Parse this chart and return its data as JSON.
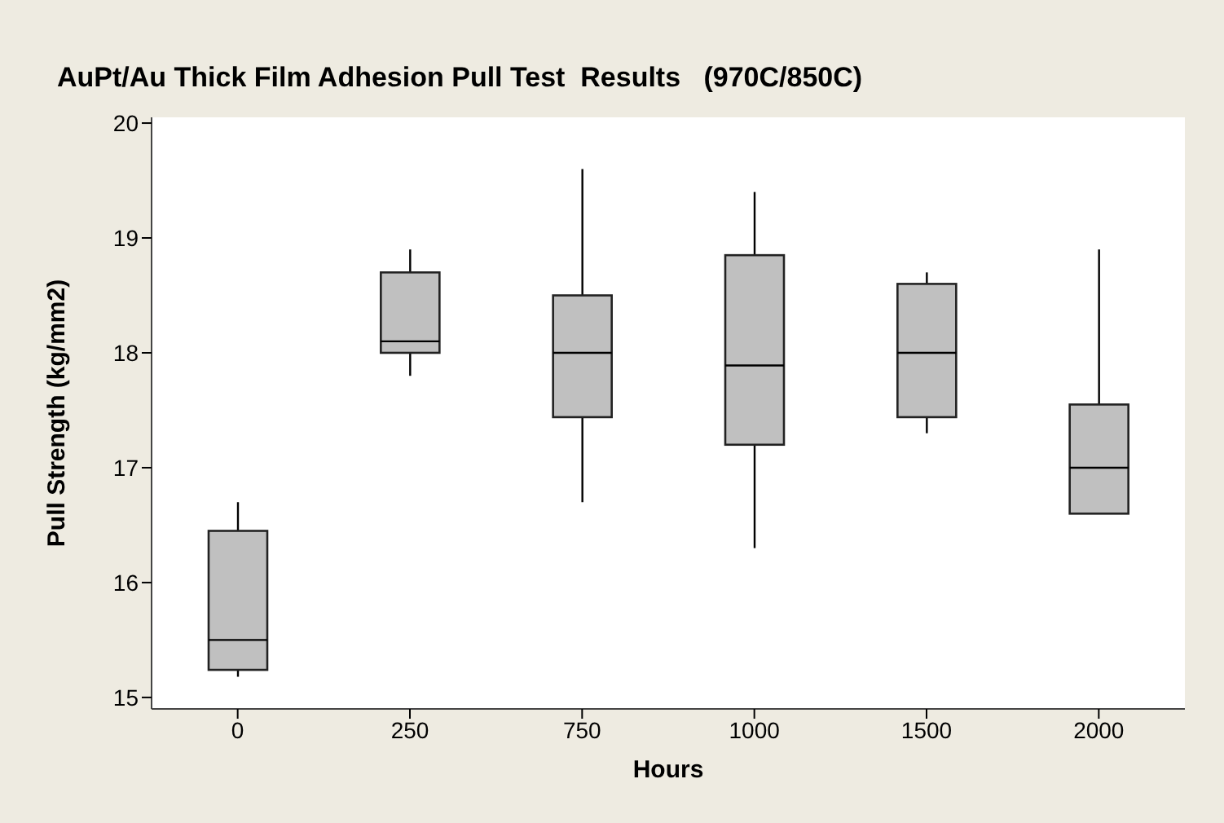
{
  "chart_data": {
    "type": "box",
    "title": "AuPt/Au Thick Film Adhesion Pull Test  Results   (970C/850C)",
    "xlabel": "Hours",
    "ylabel": "Pull Strength (kg/mm2)",
    "categories": [
      "0",
      "250",
      "750",
      "1000",
      "1500",
      "2000"
    ],
    "color": "#c0c0c0",
    "ylim": [
      14.9,
      20.05
    ],
    "yticks": [
      15,
      16,
      17,
      18,
      19,
      20
    ],
    "boxes": [
      {
        "low": 15.18,
        "q1": 15.24,
        "median": 15.5,
        "q3": 16.45,
        "high": 16.7
      },
      {
        "low": 17.8,
        "q1": 18.0,
        "median": 18.1,
        "q3": 18.7,
        "high": 18.9
      },
      {
        "low": 16.7,
        "q1": 17.44,
        "median": 18.0,
        "q3": 18.5,
        "high": 19.6
      },
      {
        "low": 16.3,
        "q1": 17.2,
        "median": 17.89,
        "q3": 18.85,
        "high": 19.4
      },
      {
        "low": 17.3,
        "q1": 17.44,
        "median": 18.0,
        "q3": 18.6,
        "high": 18.7
      },
      {
        "low": 16.6,
        "q1": 16.6,
        "median": 17.0,
        "q3": 17.55,
        "high": 18.9
      }
    ]
  }
}
